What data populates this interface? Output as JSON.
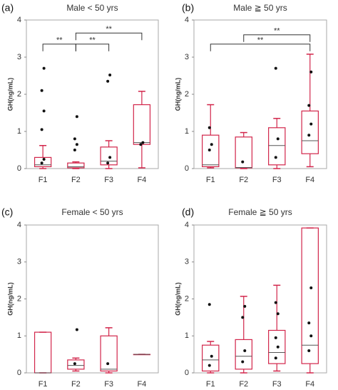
{
  "chart_data": [
    {
      "type": "box",
      "panel_label": "(a)",
      "title": "Male < 50 yrs",
      "ylabel": "GH(ng/mL)",
      "color": "#d2254a",
      "categories": [
        "F1",
        "F2",
        "F3",
        "F4"
      ],
      "ylim": [
        0,
        4
      ],
      "yticks": [
        0,
        1,
        2,
        3,
        4
      ],
      "boxes": [
        {
          "min": 0,
          "q1": 0.05,
          "median": 0.1,
          "q3": 0.3,
          "max": 0.62,
          "points": [
            0.15,
            0.25,
            1.05,
            1.55,
            2.1,
            2.7
          ]
        },
        {
          "min": 0,
          "q1": 0.02,
          "median": 0.05,
          "q3": 0.15,
          "max": 0.18,
          "points": [
            0.5,
            0.65,
            0.8,
            1.4
          ]
        },
        {
          "min": 0,
          "q1": 0.1,
          "median": 0.2,
          "q3": 0.58,
          "max": 0.75,
          "points": [
            0.15,
            0.3,
            2.35,
            2.52
          ]
        },
        {
          "min": 0.02,
          "q1": 0.65,
          "median": 0.7,
          "q3": 1.72,
          "max": 2.08,
          "points": [
            0.65,
            0.7
          ]
        }
      ],
      "comparisons": [
        {
          "groups": [
            "F1",
            "F2"
          ],
          "y": 3.35,
          "label": "**"
        },
        {
          "groups": [
            "F2",
            "F3"
          ],
          "y": 3.35,
          "label": "**"
        },
        {
          "groups": [
            "F2",
            "F4"
          ],
          "y": 3.65,
          "label": "**"
        }
      ]
    },
    {
      "type": "box",
      "panel_label": "(b)",
      "title": "Male ≧ 50 yrs",
      "ylabel": "GH(ng/mL)",
      "color": "#d2254a",
      "categories": [
        "F1",
        "F2",
        "F3",
        "F4"
      ],
      "ylim": [
        0,
        4
      ],
      "yticks": [
        0,
        1,
        2,
        3,
        4
      ],
      "boxes": [
        {
          "min": 0.02,
          "q1": 0.05,
          "median": 0.1,
          "q3": 0.9,
          "max": 1.72,
          "points": [
            0.5,
            0.65,
            1.1
          ]
        },
        {
          "min": 0,
          "q1": 0.02,
          "median": 0.03,
          "q3": 0.85,
          "max": 0.97,
          "points": [
            0.18
          ]
        },
        {
          "min": 0,
          "q1": 0.1,
          "median": 0.62,
          "q3": 1.1,
          "max": 1.35,
          "points": [
            0.3,
            0.8,
            2.7
          ]
        },
        {
          "min": 0.05,
          "q1": 0.4,
          "median": 0.75,
          "q3": 1.55,
          "max": 3.08,
          "points": [
            0.9,
            1.2,
            1.7,
            2.6
          ]
        }
      ],
      "comparisons": [
        {
          "groups": [
            "F1",
            "F4"
          ],
          "y": 3.35,
          "label": "**"
        },
        {
          "groups": [
            "F2",
            "F4"
          ],
          "y": 3.6,
          "label": "**"
        }
      ]
    },
    {
      "type": "box",
      "panel_label": "(c)",
      "title": "Female < 50 yrs",
      "ylabel": "GH(ng/mL)",
      "color": "#d2254a",
      "categories": [
        "F1",
        "F2",
        "F3",
        "F4"
      ],
      "ylim": [
        0,
        4
      ],
      "yticks": [
        0,
        1,
        2,
        3,
        4
      ],
      "boxes": [
        {
          "min": 0,
          "q1": 0,
          "median": 0,
          "q3": 1.1,
          "max": 1.1,
          "points": []
        },
        {
          "min": 0.05,
          "q1": 0.1,
          "median": 0.2,
          "q3": 0.35,
          "max": 0.4,
          "points": [
            0.25,
            1.17
          ]
        },
        {
          "min": 0,
          "q1": 0.05,
          "median": 0.1,
          "q3": 1.0,
          "max": 1.22,
          "points": [
            0.25
          ]
        },
        {
          "min": 0.5,
          "q1": 0.5,
          "median": 0.5,
          "q3": 0.5,
          "max": 0.5,
          "points": []
        }
      ],
      "comparisons": []
    },
    {
      "type": "box",
      "panel_label": "(d)",
      "title": "Female ≧ 50 yrs",
      "ylabel": "GH(ng/mL)",
      "color": "#d2254a",
      "categories": [
        "F1",
        "F2",
        "F3",
        "F4"
      ],
      "ylim": [
        0,
        4
      ],
      "yticks": [
        0,
        1,
        2,
        3,
        4
      ],
      "boxes": [
        {
          "min": 0,
          "q1": 0.05,
          "median": 0.35,
          "q3": 0.75,
          "max": 0.85,
          "points": [
            0.2,
            0.45,
            1.85
          ]
        },
        {
          "min": 0,
          "q1": 0.1,
          "median": 0.45,
          "q3": 0.9,
          "max": 2.07,
          "points": [
            0.3,
            0.6,
            1.5,
            1.8
          ]
        },
        {
          "min": 0.05,
          "q1": 0.25,
          "median": 0.55,
          "q3": 1.15,
          "max": 2.37,
          "points": [
            0.4,
            0.7,
            0.95,
            1.6,
            1.9
          ]
        },
        {
          "min": 0,
          "q1": 0.25,
          "median": 0.75,
          "q3": 3.92,
          "max": 3.92,
          "points": [
            0.6,
            1.0,
            1.35,
            2.3
          ]
        }
      ],
      "comparisons": []
    }
  ]
}
